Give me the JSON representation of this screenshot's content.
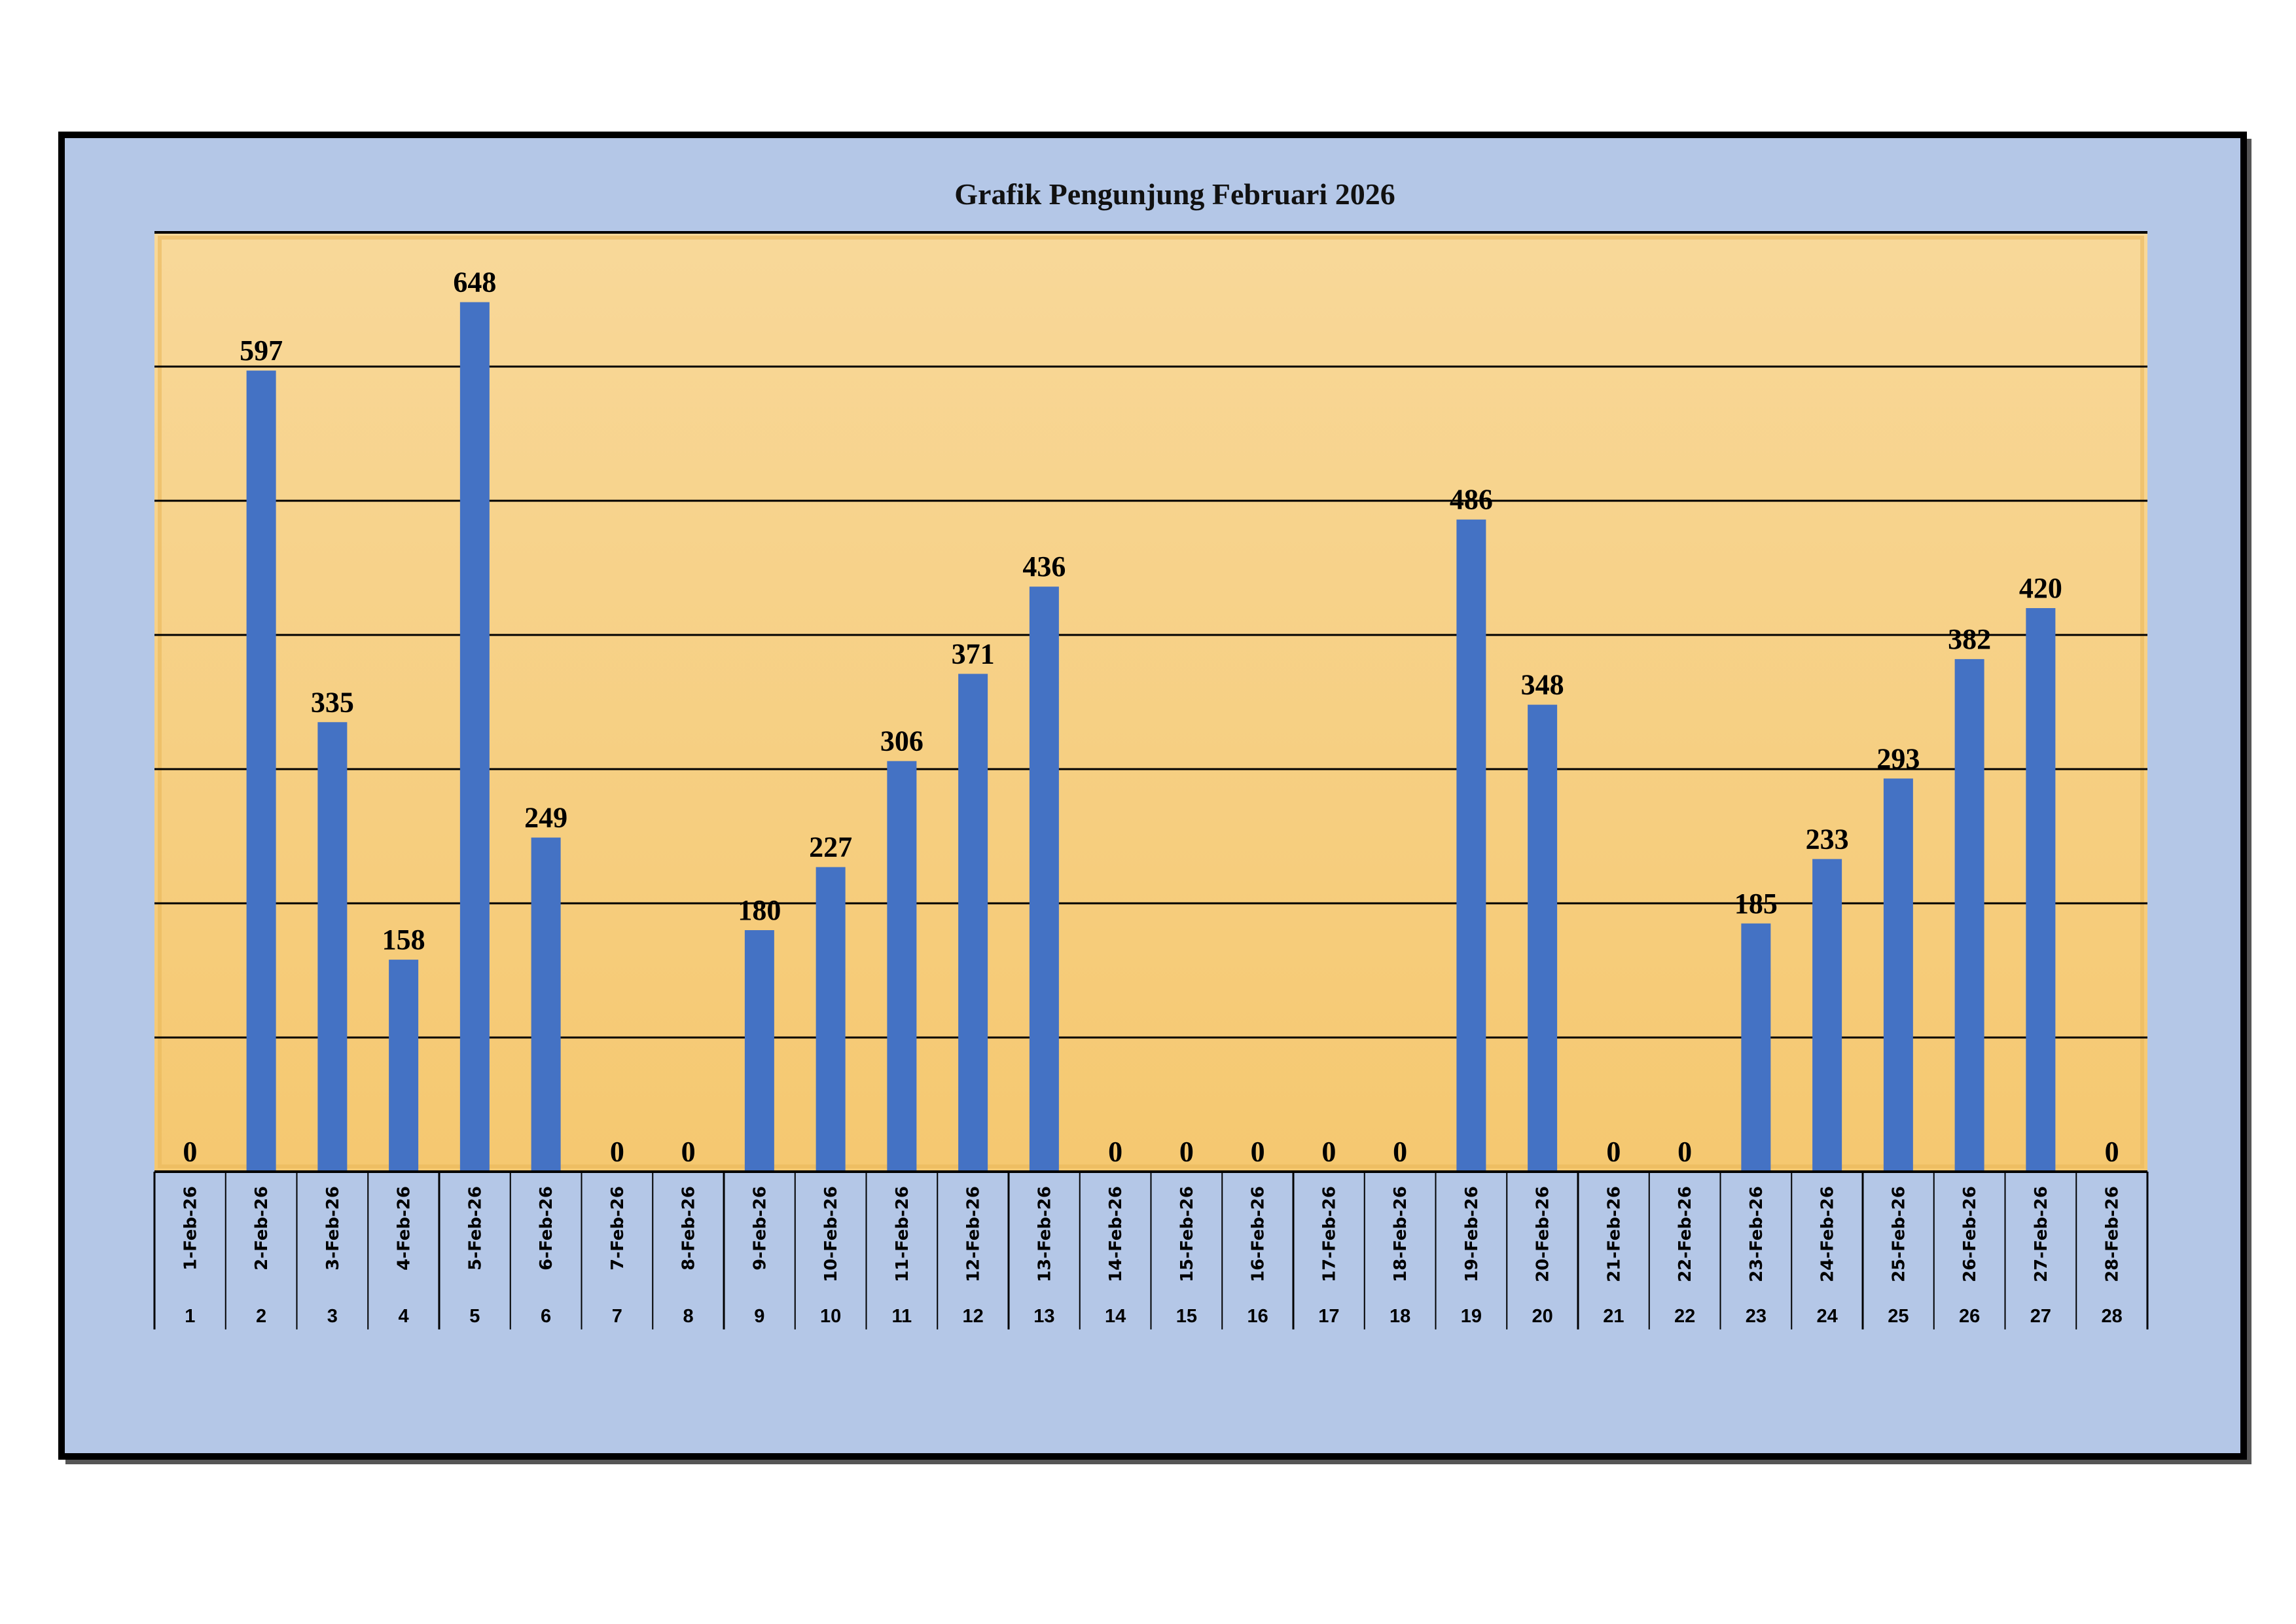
{
  "chart_data": {
    "type": "bar",
    "title": "Grafik Pengunjung Februari 2026",
    "xlabel": "",
    "ylabel": "",
    "ylim": [
      0,
      700
    ],
    "grid": true,
    "grid_step": 100,
    "categories": [
      "1-Feb-26",
      "2-Feb-26",
      "3-Feb-26",
      "4-Feb-26",
      "5-Feb-26",
      "6-Feb-26",
      "7-Feb-26",
      "8-Feb-26",
      "9-Feb-26",
      "10-Feb-26",
      "11-Feb-26",
      "12-Feb-26",
      "13-Feb-26",
      "14-Feb-26",
      "15-Feb-26",
      "16-Feb-26",
      "17-Feb-26",
      "18-Feb-26",
      "19-Feb-26",
      "20-Feb-26",
      "21-Feb-26",
      "22-Feb-26",
      "23-Feb-26",
      "24-Feb-26",
      "25-Feb-26",
      "26-Feb-26",
      "27-Feb-26",
      "28-Feb-26"
    ],
    "day_numbers": [
      "1",
      "2",
      "3",
      "4",
      "5",
      "6",
      "7",
      "8",
      "9",
      "10",
      "11",
      "12",
      "13",
      "14",
      "15",
      "16",
      "17",
      "18",
      "19",
      "20",
      "21",
      "22",
      "23",
      "24",
      "25",
      "26",
      "27",
      "28"
    ],
    "values": [
      0,
      597,
      335,
      158,
      648,
      249,
      0,
      0,
      180,
      227,
      306,
      371,
      436,
      0,
      0,
      0,
      0,
      0,
      486,
      348,
      0,
      0,
      185,
      233,
      293,
      382,
      420,
      0
    ],
    "colors": {
      "bar": "#4472C4",
      "chart_bg": "#B4C7E7",
      "plot_top": "#F8D899",
      "plot_bottom": "#F5C870"
    }
  }
}
